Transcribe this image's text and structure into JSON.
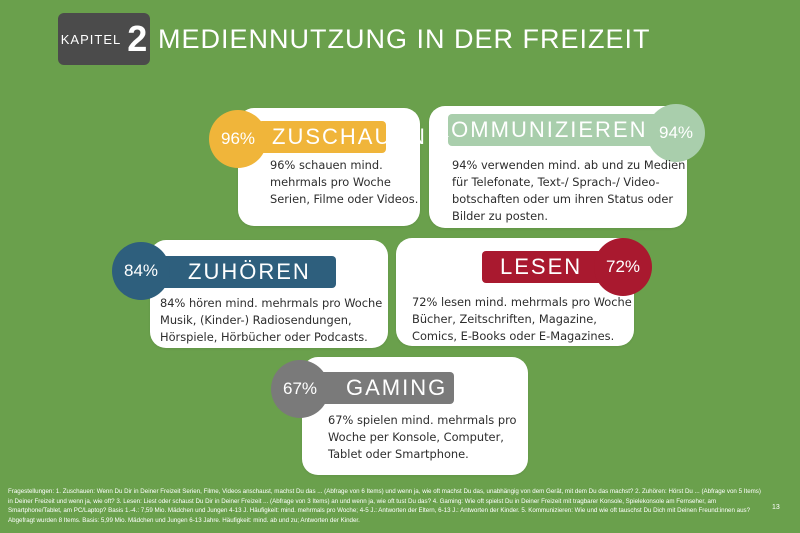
{
  "header": {
    "chapter_word": "Kapitel",
    "chapter_number": "2",
    "title": "Mediennutzung in der Freizeit"
  },
  "cards": {
    "zuschauen": {
      "percent": "96%",
      "label": "Zuschauen",
      "lines": [
        "96% schauen mind.",
        "mehrmals pro Woche",
        "Serien, Filme oder Videos."
      ],
      "badge_color": "#f0b53a",
      "pill_color": "#f0b53a"
    },
    "kommunizieren": {
      "percent": "94%",
      "label": "Kommunizieren",
      "lines": [
        "94% verwenden mind. ab und zu Medien",
        "für Telefonate, Text-/ Sprach-/ Video-",
        "botschaften oder um ihren Status oder",
        "Bilder zu posten."
      ],
      "badge_color": "#a9ceac",
      "pill_color": "#a9ceac"
    },
    "zuhoeren": {
      "percent": "84%",
      "label": "Zuhören",
      "lines": [
        "84% hören mind. mehrmals pro Woche",
        "Musik,  (Kinder-) Radiosendungen,",
        "Hörspiele, Hörbücher oder Podcasts."
      ],
      "badge_color": "#2e5f7d",
      "pill_color": "#2e5f7d"
    },
    "lesen": {
      "percent": "72%",
      "label": "Lesen",
      "lines": [
        "72% lesen mind. mehrmals pro Woche",
        "Bücher, Zeitschriften, Magazine,",
        "Comics, E-Books oder E-Magazines."
      ],
      "badge_color": "#a9192f",
      "pill_color": "#a9192f"
    },
    "gaming": {
      "percent": "67%",
      "label": "Gaming",
      "lines": [
        "67% spielen mind. mehrmals pro",
        "Woche per Konsole, Computer,",
        "Tablet oder Smartphone."
      ],
      "badge_color": "#7a7a7a",
      "pill_color": "#7a7a7a"
    }
  },
  "footnote": {
    "text": "Fragestellungen: 1. Zuschauen: Wenn Du Dir in Deiner Freizeit Serien, Filme, Videos anschaust, machst Du das ... (Abfrage von 6 Items) und wenn ja, wie oft machst Du das, unabhängig von dem Gerät, mit dem Du das machst? 2. Zuhören: Hörst Du ... (Abfrage von 5 Items) in Deiner Freizeit und wenn ja, wie oft? 3. Lesen: Liest oder schaust Du Dir in Deiner Freizeit ... (Abfrage von 3 Items) an und wenn ja, wie oft tust Du das? 4. Gaming: Wie oft spielst Du in Deiner Freizeit mit tragbarer Konsole, Spielekonsole am Fernseher, am Smartphone/Tablet, am PC/Laptop? Basis 1.-4.: 7,59 Mio. Mädchen und Jungen 4-13 J. Häufigkeit: mind. mehrmals pro Woche; 4-5 J.: Antworten der Eltern, 6-13 J.: Antworten der Kinder. 5. Kommunizieren: Wie und wie oft tauschst Du Dich mit Deinen Freund:innen aus? Abgefragt wurden 8 Items. Basis: 5,99 Mio. Mädchen und Jungen 6-13 Jahre. Häufigkeit: mind. ab und zu; Antworten der Kinder.",
    "page_number": "13"
  }
}
